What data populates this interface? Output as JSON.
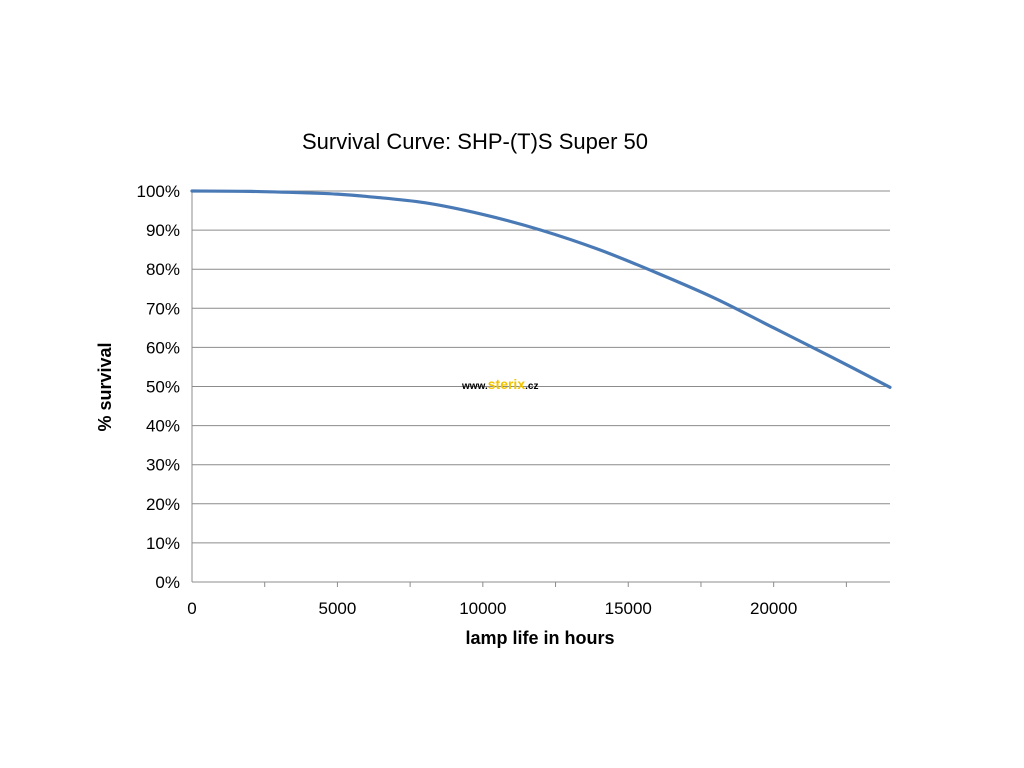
{
  "chart_data": {
    "type": "line",
    "title": "Survival Curve: SHP-(T)S  Super 50",
    "xlabel": "lamp life in hours",
    "ylabel": "% survival",
    "xlim": [
      0,
      24000
    ],
    "ylim": [
      0,
      100
    ],
    "x_ticks": [
      0,
      5000,
      10000,
      15000,
      20000
    ],
    "x_tick_labels": [
      "0",
      "5000",
      "10000",
      "15000",
      "20000"
    ],
    "y_ticks": [
      0,
      10,
      20,
      30,
      40,
      50,
      60,
      70,
      80,
      90,
      100
    ],
    "y_tick_labels": [
      "0%",
      "10%",
      "20%",
      "30%",
      "40%",
      "50%",
      "60%",
      "70%",
      "80%",
      "90%",
      "100%"
    ],
    "grid": "horizontal",
    "legend": "none",
    "series": [
      {
        "color": "#4a7ab5",
        "x": [
          0,
          2000,
          4000,
          5000,
          6000,
          8000,
          10000,
          12000,
          14000,
          16000,
          18000,
          20000,
          22000,
          24000
        ],
        "y": [
          100,
          99.9,
          99.5,
          99.2,
          98.6,
          97,
          94,
          90,
          85,
          79,
          72.5,
          65,
          57.5,
          49.8
        ]
      }
    ]
  },
  "watermark": {
    "prefix": "www.",
    "brand": "sterix",
    "suffix": ".cz",
    "brand_color": "#f2c400"
  }
}
